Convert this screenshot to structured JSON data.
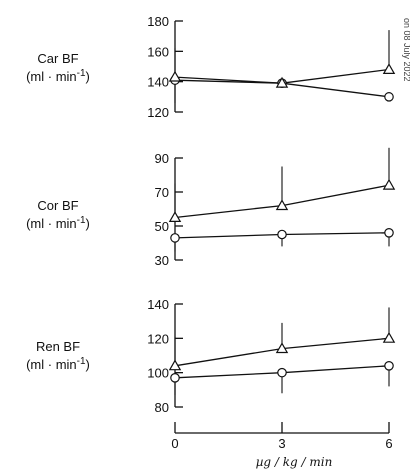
{
  "chart_data": {
    "type": "line",
    "x_label": "µg / kg / min",
    "margin_note": "on 08 July 2022",
    "panels": [
      {
        "label_line1": "Car BF",
        "label_line2": "(ml · min",
        "label_exp": "-1",
        "label_close": ")",
        "x": [
          0,
          3,
          6
        ],
        "ylim": [
          120,
          180
        ],
        "yticks": [
          120,
          140,
          160,
          180
        ],
        "series": [
          {
            "marker": "circle",
            "values": [
              141,
              139,
              130
            ],
            "err_up": [
              0,
              0,
              0
            ],
            "err_down": [
              15,
              0,
              0
            ]
          },
          {
            "marker": "triangle",
            "values": [
              143,
              139,
              148
            ],
            "err_up": [
              19,
              0,
              26
            ],
            "err_down": [
              0,
              0,
              0
            ]
          }
        ]
      },
      {
        "label_line1": "Cor BF",
        "label_line2": "(ml · min",
        "label_exp": "-1",
        "label_close": ")",
        "x": [
          0,
          3,
          6
        ],
        "ylim": [
          30,
          90
        ],
        "yticks": [
          30,
          50,
          70,
          90
        ],
        "series": [
          {
            "marker": "circle",
            "values": [
              43,
              45,
              46
            ],
            "err_up": [
              0,
              0,
              0
            ],
            "err_down": [
              8,
              7,
              8
            ]
          },
          {
            "marker": "triangle",
            "values": [
              55,
              62,
              74
            ],
            "err_up": [
              20,
              23,
              22
            ],
            "err_down": [
              0,
              0,
              0
            ]
          }
        ]
      },
      {
        "label_line1": "Ren BF",
        "label_line2": "(ml · min",
        "label_exp": "-1",
        "label_close": ")",
        "x": [
          0,
          3,
          6
        ],
        "ylim": [
          80,
          140
        ],
        "yticks": [
          80,
          100,
          120,
          140
        ],
        "series": [
          {
            "marker": "circle",
            "values": [
              97,
              100,
              104
            ],
            "err_up": [
              0,
              0,
              0
            ],
            "err_down": [
              10,
              12,
              12
            ]
          },
          {
            "marker": "triangle",
            "values": [
              104,
              114,
              120
            ],
            "err_up": [
              17,
              15,
              18
            ],
            "err_down": [
              0,
              0,
              0
            ]
          }
        ]
      }
    ],
    "xticks": [
      0,
      3,
      6
    ],
    "grid": false
  }
}
